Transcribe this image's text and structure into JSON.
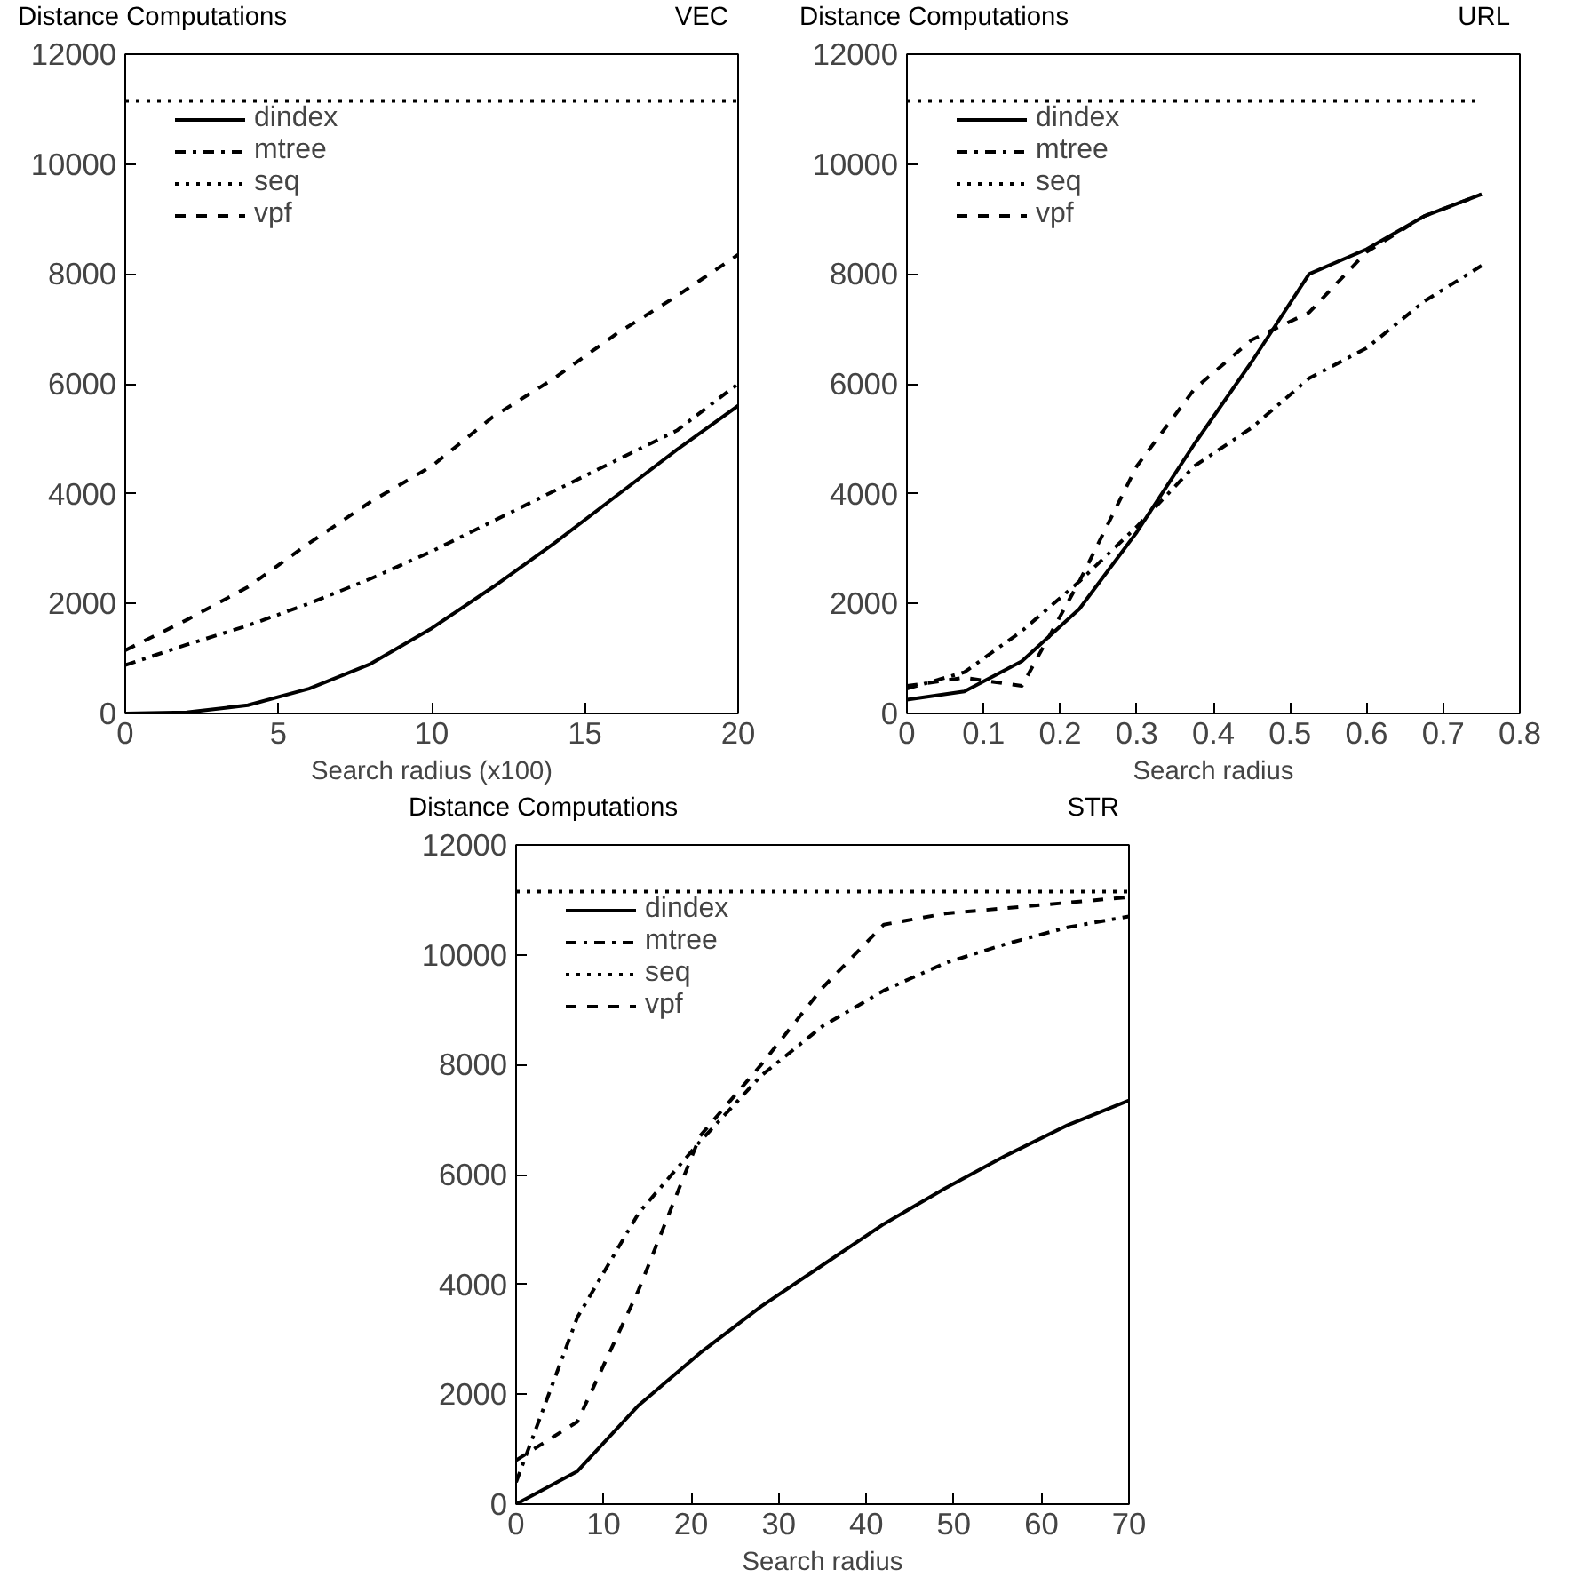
{
  "chart_data": [
    {
      "type": "line",
      "title": "Distance Computations",
      "subtitle": "VEC",
      "xlabel": "Search radius (x100)",
      "xlim": [
        0,
        20
      ],
      "xticks": [
        0,
        5,
        10,
        15,
        20
      ],
      "ylim": [
        0,
        12000
      ],
      "yticks": [
        0,
        2000,
        4000,
        6000,
        8000,
        10000,
        12000
      ],
      "grid": false,
      "legend": "top left",
      "marker": "none",
      "series": [
        {
          "name": "dindex",
          "color": "#000000",
          "line_style": "solid",
          "x": [
            0,
            2,
            4,
            6,
            8,
            10,
            12,
            14,
            16,
            18,
            20
          ],
          "values": [
            0,
            20,
            150,
            450,
            900,
            1550,
            2300,
            3100,
            3950,
            4800,
            5600
          ]
        },
        {
          "name": "mtree",
          "color": "#000000",
          "line_style": "dashdot",
          "x": [
            0,
            2,
            4,
            6,
            8,
            10,
            12,
            14,
            16,
            18,
            20
          ],
          "values": [
            880,
            1250,
            1600,
            2000,
            2450,
            2950,
            3500,
            4050,
            4600,
            5150,
            6000
          ]
        },
        {
          "name": "seq",
          "color": "#000000",
          "line_style": "dotted",
          "x": [
            0,
            20
          ],
          "values": [
            11150,
            11150
          ]
        },
        {
          "name": "vpf",
          "color": "#000000",
          "line_style": "dashed",
          "x": [
            0,
            2,
            4,
            6,
            8,
            10,
            12,
            14,
            16,
            18,
            20
          ],
          "values": [
            1150,
            1700,
            2300,
            3100,
            3850,
            4500,
            5400,
            6100,
            6900,
            7600,
            8350
          ]
        }
      ]
    },
    {
      "type": "line",
      "title": "Distance Computations",
      "subtitle": "URL",
      "xlabel": "Search radius",
      "xlim": [
        0,
        0.8
      ],
      "xticks": [
        0,
        0.1,
        0.2,
        0.3,
        0.4,
        0.5,
        0.6,
        0.7,
        0.8
      ],
      "ylim": [
        0,
        12000
      ],
      "yticks": [
        0,
        2000,
        4000,
        6000,
        8000,
        10000,
        12000
      ],
      "grid": false,
      "legend": "top left",
      "marker": "none",
      "series": [
        {
          "name": "dindex",
          "color": "#000000",
          "line_style": "solid",
          "x": [
            0,
            0.075,
            0.15,
            0.225,
            0.3,
            0.375,
            0.45,
            0.525,
            0.6,
            0.675,
            0.75
          ],
          "values": [
            250,
            400,
            950,
            1900,
            3300,
            4900,
            6400,
            8000,
            8450,
            9050,
            9450
          ]
        },
        {
          "name": "mtree",
          "color": "#000000",
          "line_style": "dashdot",
          "x": [
            0,
            0.075,
            0.15,
            0.225,
            0.3,
            0.375,
            0.45,
            0.525,
            0.6,
            0.675,
            0.75
          ],
          "values": [
            450,
            750,
            1500,
            2400,
            3400,
            4500,
            5200,
            6100,
            6650,
            7500,
            8150
          ]
        },
        {
          "name": "seq",
          "color": "#000000",
          "line_style": "dotted",
          "x": [
            0,
            0.75
          ],
          "values": [
            11150,
            11150
          ]
        },
        {
          "name": "vpf",
          "color": "#000000",
          "line_style": "dashed",
          "x": [
            0,
            0.075,
            0.15,
            0.225,
            0.3,
            0.375,
            0.45,
            0.525,
            0.6,
            0.675,
            0.75
          ],
          "values": [
            500,
            650,
            500,
            2400,
            4500,
            5900,
            6800,
            7300,
            8400,
            9050,
            9450
          ]
        }
      ]
    },
    {
      "type": "line",
      "title": "Distance Computations",
      "subtitle": "STR",
      "xlabel": "Search radius",
      "xlim": [
        0,
        70
      ],
      "xticks": [
        0,
        10,
        20,
        30,
        40,
        50,
        60,
        70
      ],
      "ylim": [
        0,
        12000
      ],
      "yticks": [
        0,
        2000,
        4000,
        6000,
        8000,
        10000,
        12000
      ],
      "grid": false,
      "legend": "top left",
      "marker": "none",
      "series": [
        {
          "name": "dindex",
          "color": "#000000",
          "line_style": "solid",
          "x": [
            0,
            7,
            14,
            21,
            28,
            35,
            42,
            49,
            56,
            63,
            70
          ],
          "values": [
            0,
            600,
            1800,
            2750,
            3600,
            4350,
            5100,
            5750,
            6350,
            6900,
            7350
          ]
        },
        {
          "name": "mtree",
          "color": "#000000",
          "line_style": "dashdot",
          "x": [
            0,
            7,
            14,
            21,
            28,
            35,
            42,
            49,
            56,
            63,
            70
          ],
          "values": [
            400,
            3400,
            5300,
            6600,
            7800,
            8700,
            9350,
            9850,
            10200,
            10500,
            10700
          ]
        },
        {
          "name": "seq",
          "color": "#000000",
          "line_style": "dotted",
          "x": [
            0,
            70
          ],
          "values": [
            11150,
            11150
          ]
        },
        {
          "name": "vpf",
          "color": "#000000",
          "line_style": "dashed",
          "x": [
            0,
            7,
            14,
            21,
            28,
            35,
            42,
            49,
            56,
            63,
            70
          ],
          "values": [
            800,
            1500,
            3900,
            6700,
            8000,
            9400,
            10550,
            10750,
            10850,
            10950,
            11050
          ]
        }
      ]
    }
  ]
}
